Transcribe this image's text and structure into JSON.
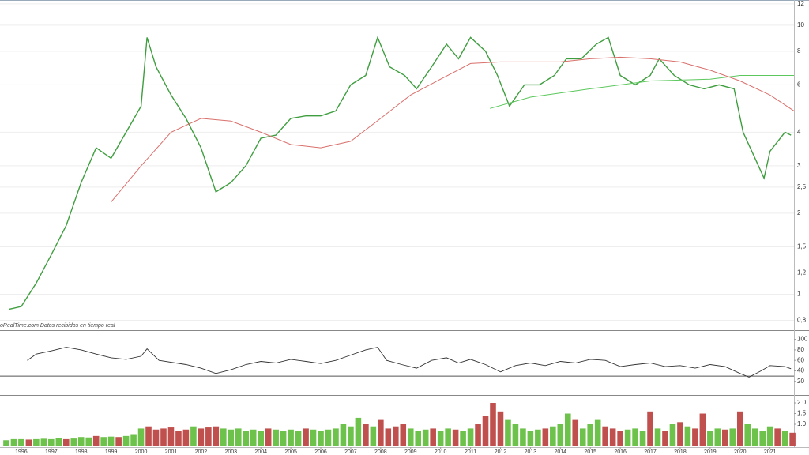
{
  "chart_data": [
    {
      "type": "line",
      "log": true,
      "grid": true,
      "annotation": "oRealTime.com  Datos recibidos en tiempo real",
      "xlim": [
        1995.29,
        2021.8
      ],
      "ylim": [
        0.75,
        12.4
      ],
      "yticks": [
        {
          "value": 0.8,
          "label": "0,8"
        },
        1,
        {
          "value": 1.2,
          "label": "1,2"
        },
        {
          "value": 1.5,
          "label": "1,5"
        },
        2,
        {
          "value": 2.5,
          "label": "2,5"
        },
        3,
        4,
        6,
        8,
        10,
        12
      ],
      "series": [
        {
          "color": "#3f9e3f",
          "width": 1.4,
          "x": [
            1995.6,
            1996.0,
            1996.5,
            1997.0,
            1997.5,
            1998.0,
            1998.5,
            1999.0,
            1999.5,
            2000.0,
            2000.2,
            2000.5,
            2001.0,
            2001.5,
            2002.0,
            2002.5,
            2003.0,
            2003.5,
            2004.0,
            2004.5,
            2005.0,
            2005.5,
            2006.0,
            2006.5,
            2007.0,
            2007.5,
            2007.9,
            2008.3,
            2008.8,
            2009.2,
            2009.7,
            2010.2,
            2010.6,
            2011.0,
            2011.5,
            2011.9,
            2012.3,
            2012.8,
            2013.3,
            2013.8,
            2014.2,
            2014.7,
            2015.2,
            2015.6,
            2016.0,
            2016.5,
            2017.0,
            2017.3,
            2017.8,
            2018.3,
            2018.8,
            2019.3,
            2019.8,
            2020.1,
            2020.5,
            2020.8,
            2021.0,
            2021.5,
            2021.7
          ],
          "values": [
            0.88,
            0.9,
            1.1,
            1.4,
            1.8,
            2.6,
            3.5,
            3.2,
            4.0,
            5.0,
            9.0,
            7.0,
            5.5,
            4.5,
            3.5,
            2.4,
            2.6,
            3.0,
            3.8,
            3.9,
            4.5,
            4.6,
            4.6,
            4.8,
            6.0,
            6.5,
            9.0,
            7.0,
            6.5,
            5.8,
            7.0,
            8.5,
            7.5,
            9.0,
            8.0,
            6.5,
            5.0,
            6.0,
            6.0,
            6.5,
            7.5,
            7.5,
            8.5,
            9.0,
            6.5,
            6.0,
            6.5,
            7.5,
            6.5,
            6.0,
            5.8,
            6.0,
            5.8,
            4.0,
            3.2,
            2.7,
            3.4,
            4.0,
            3.9
          ]
        },
        {
          "color": "#d9706c",
          "width": 1,
          "x": [
            1999.0,
            2000,
            2001,
            2002,
            2003,
            2004,
            2005,
            2006,
            2007,
            2008,
            2009,
            2010,
            2011,
            2012,
            2013,
            2014,
            2015,
            2016,
            2017,
            2018,
            2019,
            2020,
            2021,
            2021.8
          ],
          "values": [
            2.2,
            3.0,
            4.0,
            4.5,
            4.4,
            4.0,
            3.6,
            3.5,
            3.7,
            4.5,
            5.5,
            6.3,
            7.2,
            7.3,
            7.3,
            7.3,
            7.5,
            7.6,
            7.5,
            7.3,
            6.8,
            6.2,
            5.5,
            4.8
          ]
        },
        {
          "color": "#5cc85c",
          "width": 1,
          "x": [
            2011.65,
            2013,
            2015,
            2017,
            2019,
            2020,
            2021.8
          ],
          "values": [
            4.9,
            5.4,
            5.8,
            6.2,
            6.3,
            6.5,
            6.5
          ]
        }
      ]
    },
    {
      "type": "line",
      "xlim": [
        1995.29,
        2021.8
      ],
      "ylim": [
        0,
        110
      ],
      "yticks": [
        20,
        40,
        60,
        80,
        100
      ],
      "levels": [
        70,
        30
      ],
      "series": [
        {
          "color": "#333333",
          "width": 0.9,
          "x": [
            1996.2,
            1996.5,
            1997,
            1997.5,
            1998,
            1998.5,
            1999,
            1999.5,
            2000,
            2000.2,
            2000.6,
            2001.5,
            2002,
            2002.5,
            2003,
            2003.5,
            2004,
            2004.5,
            2005,
            2005.5,
            2006,
            2006.5,
            2007,
            2007.5,
            2007.9,
            2008.2,
            2008.7,
            2009.2,
            2009.7,
            2010.2,
            2010.6,
            2011,
            2011.5,
            2012,
            2012.5,
            2013,
            2013.5,
            2014,
            2014.5,
            2015,
            2015.5,
            2016,
            2016.5,
            2017,
            2017.5,
            2018,
            2018.5,
            2019,
            2019.5,
            2020,
            2020.3,
            2020.7,
            2021,
            2021.5,
            2021.7
          ],
          "values": [
            60,
            72,
            78,
            85,
            80,
            72,
            65,
            62,
            68,
            82,
            60,
            52,
            45,
            35,
            42,
            52,
            58,
            55,
            62,
            58,
            54,
            60,
            70,
            80,
            85,
            60,
            52,
            45,
            60,
            65,
            55,
            62,
            52,
            38,
            50,
            55,
            50,
            58,
            55,
            62,
            60,
            48,
            52,
            55,
            48,
            50,
            45,
            52,
            48,
            35,
            28,
            40,
            50,
            48,
            44
          ]
        }
      ]
    },
    {
      "type": "bar",
      "xlim": [
        1995.29,
        2021.8
      ],
      "ylim": [
        0,
        2.26
      ],
      "xticks": [
        1996,
        1997,
        1998,
        1999,
        2000,
        2001,
        2002,
        2003,
        2004,
        2005,
        2006,
        2007,
        2008,
        2009,
        2010,
        2011,
        2012,
        2013,
        2014,
        2015,
        2016,
        2017,
        2018,
        2019,
        2020,
        2021
      ],
      "yticks": [
        {
          "value": 1,
          "label": "1.0"
        },
        1.5,
        {
          "value": 2,
          "label": "2.0"
        }
      ],
      "bar_step": 0.25,
      "x": [
        1995.5,
        1995.75,
        1996,
        1996.25,
        1996.5,
        1996.75,
        1997,
        1997.25,
        1997.5,
        1997.75,
        1998,
        1998.25,
        1998.5,
        1998.75,
        1999,
        1999.25,
        1999.5,
        1999.75,
        2000,
        2000.25,
        2000.5,
        2000.75,
        2001,
        2001.25,
        2001.5,
        2001.75,
        2002,
        2002.25,
        2002.5,
        2002.75,
        2003,
        2003.25,
        2003.5,
        2003.75,
        2004,
        2004.25,
        2004.5,
        2004.75,
        2005,
        2005.25,
        2005.5,
        2005.75,
        2006,
        2006.25,
        2006.5,
        2006.75,
        2007,
        2007.25,
        2007.5,
        2007.75,
        2008,
        2008.25,
        2008.5,
        2008.75,
        2009,
        2009.25,
        2009.5,
        2009.75,
        2010,
        2010.25,
        2010.5,
        2010.75,
        2011,
        2011.25,
        2011.5,
        2011.75,
        2012,
        2012.25,
        2012.5,
        2012.75,
        2013,
        2013.25,
        2013.5,
        2013.75,
        2014,
        2014.25,
        2014.5,
        2014.75,
        2015,
        2015.25,
        2015.5,
        2015.75,
        2016,
        2016.25,
        2016.5,
        2016.75,
        2017,
        2017.25,
        2017.5,
        2017.75,
        2018,
        2018.25,
        2018.5,
        2018.75,
        2019,
        2019.25,
        2019.5,
        2019.75,
        2020,
        2020.25,
        2020.5,
        2020.75,
        2021,
        2021.25,
        2021.5,
        2021.75
      ],
      "values": [
        0.25,
        0.3,
        0.3,
        0.28,
        0.3,
        0.32,
        0.3,
        0.35,
        0.3,
        0.33,
        0.4,
        0.38,
        0.45,
        0.4,
        0.42,
        0.4,
        0.45,
        0.5,
        0.8,
        0.9,
        0.75,
        0.8,
        0.85,
        0.7,
        0.75,
        0.9,
        0.8,
        0.85,
        0.9,
        0.8,
        0.75,
        0.8,
        0.7,
        0.75,
        0.7,
        0.8,
        0.75,
        0.7,
        0.75,
        0.7,
        0.8,
        0.75,
        0.7,
        0.75,
        0.8,
        1.0,
        0.9,
        1.3,
        1.0,
        0.9,
        1.2,
        0.8,
        0.9,
        1.0,
        0.8,
        0.7,
        0.75,
        0.8,
        0.7,
        0.8,
        0.75,
        0.7,
        0.8,
        1.0,
        1.4,
        2.0,
        1.6,
        1.2,
        1.0,
        0.8,
        0.7,
        0.75,
        0.8,
        0.9,
        1.0,
        1.5,
        1.2,
        0.8,
        1.0,
        1.2,
        0.9,
        0.8,
        0.7,
        0.75,
        0.8,
        0.7,
        1.6,
        0.8,
        0.7,
        1.0,
        1.1,
        0.9,
        0.8,
        1.5,
        0.7,
        0.8,
        0.75,
        0.8,
        1.6,
        1.0,
        0.8,
        0.7,
        0.9,
        0.8,
        0.7,
        0.6
      ],
      "colors": [
        "#6cc24a",
        "#6cc24a",
        "#6cc24a",
        "#c0504d",
        "#6cc24a",
        "#6cc24a",
        "#6cc24a",
        "#6cc24a",
        "#c0504d",
        "#6cc24a",
        "#6cc24a",
        "#6cc24a",
        "#c0504d",
        "#6cc24a",
        "#6cc24a",
        "#c0504d",
        "#6cc24a",
        "#6cc24a",
        "#6cc24a",
        "#c0504d",
        "#c0504d",
        "#c0504d",
        "#c0504d",
        "#c0504d",
        "#c0504d",
        "#6cc24a",
        "#c0504d",
        "#c0504d",
        "#c0504d",
        "#6cc24a",
        "#6cc24a",
        "#6cc24a",
        "#6cc24a",
        "#6cc24a",
        "#6cc24a",
        "#c0504d",
        "#6cc24a",
        "#6cc24a",
        "#6cc24a",
        "#6cc24a",
        "#c0504d",
        "#6cc24a",
        "#6cc24a",
        "#6cc24a",
        "#6cc24a",
        "#6cc24a",
        "#6cc24a",
        "#6cc24a",
        "#c0504d",
        "#6cc24a",
        "#c0504d",
        "#c0504d",
        "#c0504d",
        "#c0504d",
        "#6cc24a",
        "#6cc24a",
        "#6cc24a",
        "#c0504d",
        "#6cc24a",
        "#6cc24a",
        "#c0504d",
        "#6cc24a",
        "#6cc24a",
        "#c0504d",
        "#c0504d",
        "#c0504d",
        "#c0504d",
        "#6cc24a",
        "#6cc24a",
        "#6cc24a",
        "#6cc24a",
        "#6cc24a",
        "#c0504d",
        "#6cc24a",
        "#6cc24a",
        "#6cc24a",
        "#c0504d",
        "#6cc24a",
        "#6cc24a",
        "#6cc24a",
        "#c0504d",
        "#c0504d",
        "#c0504d",
        "#6cc24a",
        "#6cc24a",
        "#6cc24a",
        "#c0504d",
        "#6cc24a",
        "#c0504d",
        "#6cc24a",
        "#c0504d",
        "#6cc24a",
        "#c0504d",
        "#c0504d",
        "#6cc24a",
        "#6cc24a",
        "#c0504d",
        "#6cc24a",
        "#c0504d",
        "#6cc24a",
        "#6cc24a",
        "#6cc24a",
        "#6cc24a",
        "#c0504d",
        "#6cc24a",
        "#c0504d"
      ]
    }
  ]
}
